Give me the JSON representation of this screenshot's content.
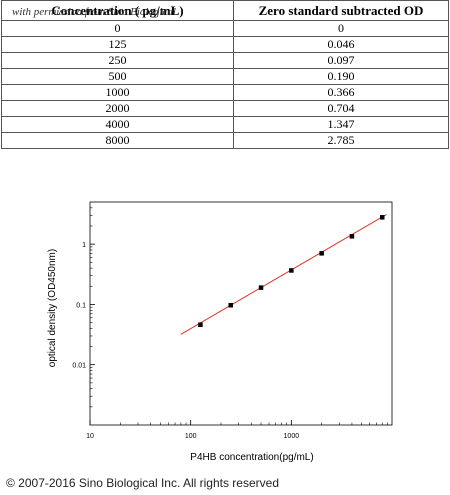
{
  "watermark": "with permission from Sino Biological",
  "table": {
    "headers": [
      "Concentration ( pg/mL)",
      "Zero standard subtracted OD"
    ],
    "rows": [
      [
        "0",
        "0"
      ],
      [
        "125",
        "0.046"
      ],
      [
        "250",
        "0.097"
      ],
      [
        "500",
        "0.190"
      ],
      [
        "1000",
        "0.366"
      ],
      [
        "2000",
        "0.704"
      ],
      [
        "4000",
        "1.347"
      ],
      [
        "8000",
        "2.785"
      ]
    ]
  },
  "chart_data": {
    "type": "scatter",
    "xlabel": "P4HB concentration(pg/mL)",
    "ylabel": "optical density (OD450nm)",
    "xscale": "log",
    "yscale": "log",
    "xlim": [
      10,
      10000
    ],
    "ylim": [
      0.001,
      5
    ],
    "x_ticks": [
      10,
      100,
      1000
    ],
    "x_tick_labels": [
      "10",
      "100",
      "1000"
    ],
    "y_ticks": [
      0.01,
      0.1,
      1
    ],
    "y_tick_labels": [
      "0.01",
      "0.1",
      "1"
    ],
    "points": {
      "x": [
        125,
        250,
        500,
        1000,
        2000,
        4000,
        8000
      ],
      "y": [
        0.046,
        0.097,
        0.19,
        0.366,
        0.704,
        1.347,
        2.785
      ]
    },
    "fit_line": {
      "x": [
        80,
        8800
      ],
      "y": [
        0.032,
        3.1
      ]
    },
    "marker_color": "#000000",
    "line_color": "#e03020",
    "grid": false
  },
  "footer": "© 2007-2016 Sino Biological Inc. All rights reserved"
}
